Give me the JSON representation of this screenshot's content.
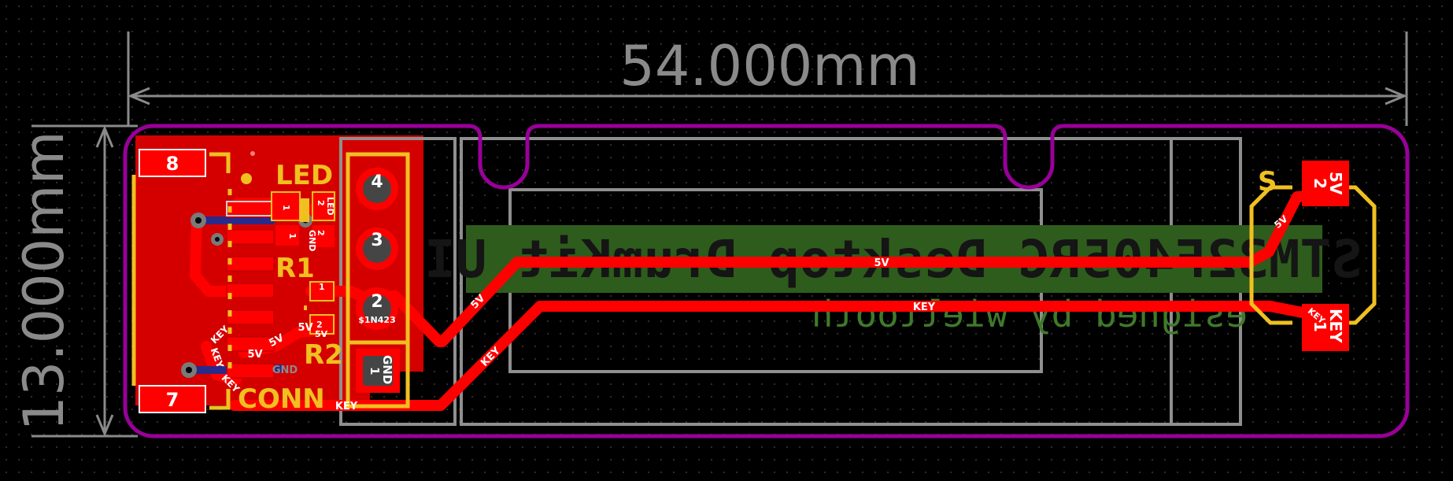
{
  "dimensions": {
    "width_label": "54.000mm",
    "height_label": "13.000mm"
  },
  "silkscreen": {
    "title": "STM32F405RG Desktop DrumKit UI",
    "subtitle": "esigned by wieltooth"
  },
  "components": {
    "led": "LED",
    "r1": "R1",
    "r2": "R2",
    "conn": "CONN",
    "s": "S"
  },
  "pads": {
    "p8": "8",
    "p7": "7",
    "h4": "4",
    "h3": "3",
    "h2": "2",
    "h1": "1",
    "h2_sub": "$1N423",
    "gnd": "GND",
    "led_pad_led": "LED",
    "led_pad_2": "2",
    "led_pad_1": "1",
    "led_pad_gnd": "GND",
    "r1_1": "1",
    "r2_1": "1",
    "r2_2": "2",
    "r2_5v": "5V",
    "sw_5v": "5V",
    "sw_2": "2",
    "sw_key": "KEY",
    "sw_1": "1"
  },
  "nets": {
    "n5v": "5V",
    "key": "KEY",
    "gnd": "GND"
  },
  "colors": {
    "copper": "#ff0000",
    "silk": "#f0c020",
    "outline": "#990099",
    "hole": "#454545",
    "label_bg": "#2e5c1c",
    "dimension": "#8a8a8a",
    "dark_text": "#151515"
  }
}
